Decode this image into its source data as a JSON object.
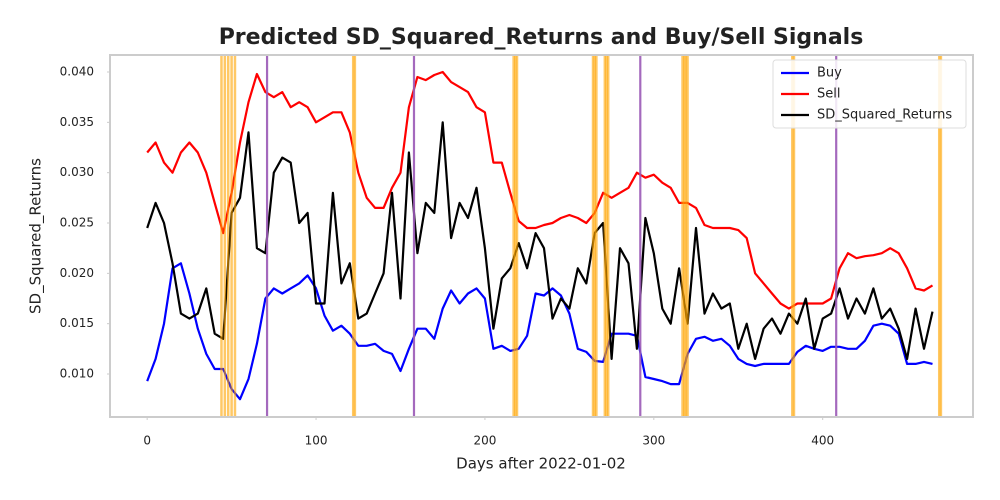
{
  "chart_data": {
    "type": "line",
    "title": "Predicted SD_Squared_Returns and Buy/Sell Signals",
    "x_label": "Days after 2022-01-02",
    "y_label": "SD_Squared_Returns",
    "x": [
      0,
      5,
      10,
      15,
      20,
      25,
      30,
      35,
      40,
      45,
      50,
      55,
      60,
      65,
      70,
      75,
      80,
      85,
      90,
      95,
      100,
      105,
      110,
      115,
      120,
      125,
      130,
      135,
      140,
      145,
      150,
      155,
      160,
      165,
      170,
      175,
      180,
      185,
      190,
      195,
      200,
      205,
      210,
      215,
      220,
      225,
      230,
      235,
      240,
      245,
      250,
      255,
      260,
      265,
      270,
      275,
      280,
      285,
      290,
      295,
      300,
      305,
      310,
      315,
      320,
      325,
      330,
      335,
      340,
      345,
      350,
      355,
      360,
      365,
      370,
      375,
      380,
      385,
      390,
      395,
      400,
      405,
      410,
      415,
      420,
      425,
      430,
      435,
      440,
      445,
      450,
      455,
      460,
      465
    ],
    "series": [
      {
        "name": "Buy",
        "color": "#0000ff",
        "values": [
          0.0093,
          0.0115,
          0.015,
          0.0205,
          0.021,
          0.018,
          0.0145,
          0.012,
          0.0105,
          0.0105,
          0.0085,
          0.0075,
          0.0095,
          0.013,
          0.0175,
          0.0185,
          0.018,
          0.0185,
          0.019,
          0.0198,
          0.0185,
          0.0158,
          0.0143,
          0.0148,
          0.014,
          0.0128,
          0.0128,
          0.013,
          0.0123,
          0.012,
          0.0103,
          0.0125,
          0.0145,
          0.0145,
          0.0135,
          0.0165,
          0.0183,
          0.017,
          0.018,
          0.0185,
          0.0175,
          0.0125,
          0.0128,
          0.0123,
          0.0125,
          0.0138,
          0.018,
          0.0178,
          0.0185,
          0.0178,
          0.016,
          0.0125,
          0.0122,
          0.0113,
          0.0112,
          0.014,
          0.014,
          0.014,
          0.0138,
          0.0097,
          0.0095,
          0.0093,
          0.009,
          0.009,
          0.012,
          0.0135,
          0.0137,
          0.0133,
          0.0135,
          0.0128,
          0.0115,
          0.011,
          0.0108,
          0.011,
          0.011,
          0.011,
          0.011,
          0.0122,
          0.0128,
          0.0125,
          0.0123,
          0.0127,
          0.0127,
          0.0125,
          0.0125,
          0.0133,
          0.0148,
          0.015,
          0.0148,
          0.014,
          0.011,
          0.011,
          0.0112,
          0.011
        ]
      },
      {
        "name": "Sell",
        "color": "#ff0000",
        "values": [
          0.032,
          0.033,
          0.031,
          0.03,
          0.032,
          0.033,
          0.032,
          0.03,
          0.027,
          0.024,
          0.028,
          0.033,
          0.037,
          0.0398,
          0.038,
          0.0375,
          0.038,
          0.0365,
          0.037,
          0.0365,
          0.035,
          0.0355,
          0.036,
          0.036,
          0.034,
          0.03,
          0.0275,
          0.0265,
          0.0265,
          0.0285,
          0.03,
          0.0365,
          0.0395,
          0.0392,
          0.0397,
          0.04,
          0.039,
          0.0385,
          0.038,
          0.0365,
          0.036,
          0.031,
          0.031,
          0.028,
          0.0252,
          0.0245,
          0.0245,
          0.0248,
          0.025,
          0.0255,
          0.0258,
          0.0255,
          0.025,
          0.026,
          0.028,
          0.0275,
          0.028,
          0.0285,
          0.03,
          0.0295,
          0.0298,
          0.029,
          0.0285,
          0.027,
          0.027,
          0.0265,
          0.0248,
          0.0245,
          0.0245,
          0.0245,
          0.0243,
          0.0235,
          0.02,
          0.019,
          0.018,
          0.017,
          0.0165,
          0.017,
          0.017,
          0.017,
          0.017,
          0.0175,
          0.0205,
          0.022,
          0.0215,
          0.0217,
          0.0218,
          0.022,
          0.0225,
          0.022,
          0.0205,
          0.0185,
          0.0183,
          0.0188
        ]
      },
      {
        "name": "SD_Squared_Returns",
        "color": "#000000",
        "values": [
          0.0245,
          0.027,
          0.025,
          0.021,
          0.016,
          0.0155,
          0.016,
          0.0185,
          0.014,
          0.0135,
          0.026,
          0.0275,
          0.034,
          0.0225,
          0.022,
          0.03,
          0.0315,
          0.031,
          0.025,
          0.026,
          0.017,
          0.017,
          0.028,
          0.019,
          0.021,
          0.0155,
          0.016,
          0.018,
          0.02,
          0.028,
          0.0175,
          0.032,
          0.022,
          0.027,
          0.026,
          0.035,
          0.0235,
          0.027,
          0.0255,
          0.0285,
          0.0225,
          0.0145,
          0.0195,
          0.0205,
          0.023,
          0.0205,
          0.024,
          0.0225,
          0.0155,
          0.0175,
          0.0165,
          0.0205,
          0.019,
          0.024,
          0.025,
          0.0115,
          0.0225,
          0.021,
          0.0125,
          0.0255,
          0.022,
          0.0165,
          0.015,
          0.0205,
          0.015,
          0.0245,
          0.016,
          0.018,
          0.0165,
          0.017,
          0.0125,
          0.015,
          0.0115,
          0.0145,
          0.0155,
          0.014,
          0.016,
          0.015,
          0.0175,
          0.0125,
          0.0155,
          0.016,
          0.0185,
          0.0155,
          0.0175,
          0.016,
          0.0185,
          0.0155,
          0.0165,
          0.0145,
          0.0115,
          0.0165,
          0.0125,
          0.0162
        ]
      }
    ],
    "buy_signals": {
      "color": "#ffa500",
      "x": [
        44,
        46,
        48,
        50,
        52,
        122,
        123,
        217,
        218,
        219,
        264,
        265,
        266,
        271,
        272,
        273,
        317,
        318,
        319,
        320,
        382,
        383,
        469,
        470
      ]
    },
    "sell_signals": {
      "color": "#9b59b6",
      "x": [
        71,
        158,
        292,
        408
      ]
    },
    "xlim": [
      -22,
      489
    ],
    "ylim": [
      0.00573,
      0.04169
    ],
    "xticks": [
      0,
      100,
      200,
      300,
      400
    ],
    "yticks": [
      {
        "value": 0.01,
        "label": "0.010"
      },
      0.015,
      {
        "value": 0.02,
        "label": "0.020"
      },
      0.025,
      {
        "value": 0.03,
        "label": "0.030"
      },
      0.035,
      {
        "value": 0.04,
        "label": "0.040"
      }
    ],
    "legend": "upper right"
  }
}
